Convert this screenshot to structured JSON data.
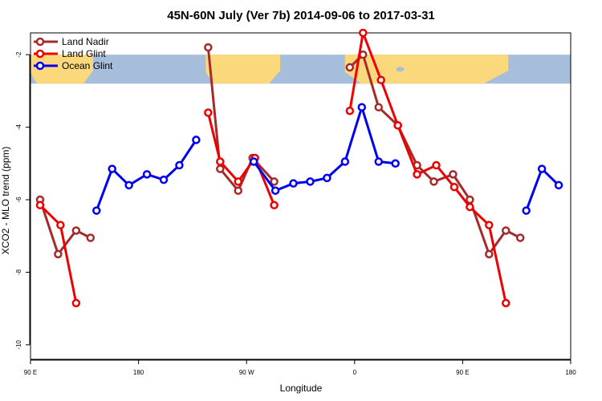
{
  "chart_data": {
    "type": "line",
    "title": "45N-60N July (Ver 7b)   2014-09-06 to 2017-03-31",
    "xlabel": "Longitude",
    "ylabel": "XCO2 - MLO trend (ppm)",
    "x_ticks": [
      {
        "pos": 0,
        "label": "90 E"
      },
      {
        "pos": 90,
        "label": "180"
      },
      {
        "pos": 180,
        "label": "90 W"
      },
      {
        "pos": 270,
        "label": "0"
      },
      {
        "pos": 360,
        "label": "90 E"
      },
      {
        "pos": 450,
        "label": "180"
      }
    ],
    "xlim": [
      0,
      450
    ],
    "ylim": [
      -10.4,
      -1.4
    ],
    "y_ticks": [
      -2,
      -4,
      -6,
      -8,
      -10
    ],
    "grid": false,
    "legend_position": "top-left",
    "map_band": {
      "ymin": -2.8,
      "ymax": -2.0
    },
    "series": [
      {
        "name": "Land Nadir",
        "color": "#a52a2a",
        "segments": [
          [
            [
              8,
              -6.0
            ],
            [
              23,
              -7.5
            ],
            [
              38,
              -6.85
            ],
            [
              50,
              -7.05
            ]
          ],
          [
            [
              148,
              -1.8
            ],
            [
              158,
              -5.15
            ],
            [
              173,
              -5.75
            ],
            [
              185,
              -4.85
            ],
            [
              203,
              -5.5
            ]
          ],
          [
            [
              266,
              -2.35
            ],
            [
              277,
              -2.0
            ],
            [
              290,
              -3.45
            ],
            [
              306,
              -3.95
            ],
            [
              322,
              -5.05
            ],
            [
              336,
              -5.5
            ],
            [
              352,
              -5.3
            ],
            [
              366,
              -6.0
            ],
            [
              382,
              -7.5
            ],
            [
              396,
              -6.85
            ],
            [
              408,
              -7.05
            ]
          ]
        ]
      },
      {
        "name": "Land Glint",
        "color": "#ee0000",
        "segments": [
          [
            [
              8,
              -6.15
            ],
            [
              25,
              -6.7
            ],
            [
              38,
              -8.85
            ]
          ],
          [
            [
              148,
              -3.6
            ],
            [
              158,
              -4.95
            ],
            [
              173,
              -5.5
            ],
            [
              187,
              -4.85
            ],
            [
              203,
              -6.15
            ]
          ],
          [
            [
              266,
              -3.55
            ],
            [
              277,
              -1.4
            ],
            [
              292,
              -2.7
            ],
            [
              306,
              -3.95
            ],
            [
              322,
              -5.3
            ],
            [
              338,
              -5.05
            ],
            [
              353,
              -5.65
            ],
            [
              366,
              -6.2
            ],
            [
              382,
              -6.7
            ],
            [
              396,
              -8.85
            ]
          ]
        ]
      },
      {
        "name": "Ocean Glint",
        "color": "#0000ee",
        "segments": [
          [
            [
              55,
              -6.3
            ],
            [
              68,
              -5.15
            ],
            [
              82,
              -5.6
            ],
            [
              97,
              -5.3
            ],
            [
              111,
              -5.45
            ],
            [
              124,
              -5.05
            ],
            [
              138,
              -4.35
            ]
          ],
          [
            [
              186,
              -4.95
            ],
            [
              204,
              -5.75
            ],
            [
              219,
              -5.55
            ],
            [
              233,
              -5.5
            ],
            [
              247,
              -5.4
            ],
            [
              262,
              -4.95
            ],
            [
              276,
              -3.45
            ],
            [
              290,
              -4.95
            ],
            [
              304,
              -5.0
            ]
          ],
          [
            [
              413,
              -6.3
            ],
            [
              426,
              -5.15
            ],
            [
              440,
              -5.6
            ]
          ]
        ]
      }
    ]
  }
}
